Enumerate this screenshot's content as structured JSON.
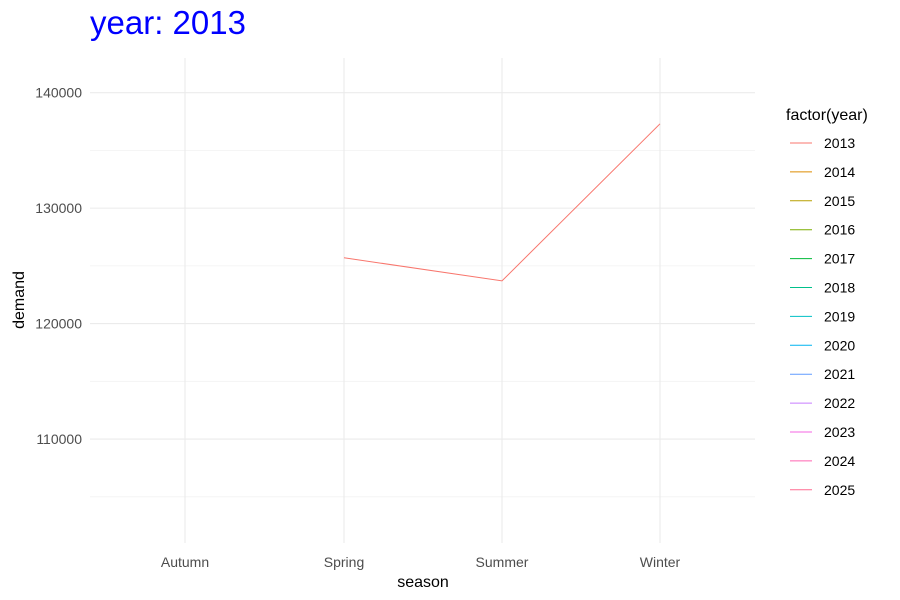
{
  "chart_data": {
    "type": "line",
    "title": "year: 2013",
    "title_color": "#0000ff",
    "xlabel": "season",
    "ylabel": "demand",
    "categories": [
      "Autumn",
      "Spring",
      "Summer",
      "Winter"
    ],
    "ylim": [
      101000,
      143000
    ],
    "yticks": [
      110000,
      120000,
      130000,
      140000
    ],
    "ytick_labels": [
      "110000",
      "120000",
      "130000",
      "140000"
    ],
    "grid": true,
    "legend": {
      "title": "factor(year)",
      "placement": "right",
      "items": [
        {
          "label": "2013",
          "color": "#F8766D"
        },
        {
          "label": "2014",
          "color": "#DE8C00"
        },
        {
          "label": "2015",
          "color": "#B79F00"
        },
        {
          "label": "2016",
          "color": "#7CAE00"
        },
        {
          "label": "2017",
          "color": "#00BA38"
        },
        {
          "label": "2018",
          "color": "#00C08B"
        },
        {
          "label": "2019",
          "color": "#00BFC4"
        },
        {
          "label": "2020",
          "color": "#00B4F0"
        },
        {
          "label": "2021",
          "color": "#619CFF"
        },
        {
          "label": "2022",
          "color": "#C77CFF"
        },
        {
          "label": "2023",
          "color": "#F564E3"
        },
        {
          "label": "2024",
          "color": "#FF64B0"
        },
        {
          "label": "2025",
          "color": "#FF6C91"
        }
      ]
    },
    "series": [
      {
        "name": "2013",
        "color": "#F8766D",
        "points": [
          {
            "x": "Spring",
            "y": 125700
          },
          {
            "x": "Summer",
            "y": 123700
          },
          {
            "x": "Winter",
            "y": 137300
          }
        ]
      }
    ]
  }
}
